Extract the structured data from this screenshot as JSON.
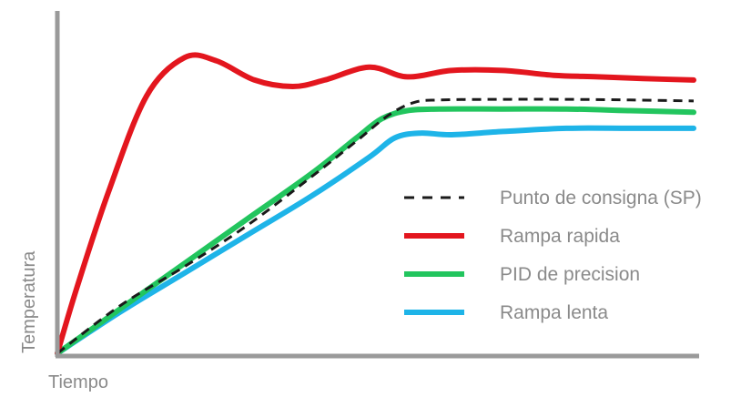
{
  "chart_data": {
    "type": "line",
    "title": "",
    "xlabel": "Tiempo",
    "ylabel": "Temperatura",
    "xlim": [
      0,
      100
    ],
    "ylim": [
      0,
      100
    ],
    "grid": false,
    "legend_position": "right",
    "series": [
      {
        "name": "Punto de consigna (SP)",
        "color": "#1a1a1a",
        "style": "dashed",
        "points": [
          [
            0,
            0
          ],
          [
            10,
            15
          ],
          [
            20,
            27
          ],
          [
            30,
            40
          ],
          [
            40,
            55
          ],
          [
            47,
            66
          ],
          [
            52,
            74
          ],
          [
            56,
            78
          ],
          [
            60,
            78.8
          ],
          [
            70,
            79
          ],
          [
            80,
            79
          ],
          [
            90,
            78.8
          ],
          [
            100,
            78.5
          ]
        ]
      },
      {
        "name": "Rampa rapida",
        "color": "#e3161e",
        "style": "solid",
        "points": [
          [
            0,
            0
          ],
          [
            3,
            20
          ],
          [
            8,
            50
          ],
          [
            14,
            80
          ],
          [
            20,
            92
          ],
          [
            25,
            91
          ],
          [
            31,
            85
          ],
          [
            37,
            83
          ],
          [
            42,
            85
          ],
          [
            49,
            89
          ],
          [
            55,
            86
          ],
          [
            62,
            88
          ],
          [
            70,
            88
          ],
          [
            78,
            86.5
          ],
          [
            85,
            86
          ],
          [
            92,
            85.5
          ],
          [
            100,
            85
          ]
        ]
      },
      {
        "name": "PID de precision",
        "color": "#22c55e",
        "style": "solid",
        "points": [
          [
            0,
            0
          ],
          [
            10,
            14
          ],
          [
            20,
            28
          ],
          [
            30,
            42
          ],
          [
            40,
            56
          ],
          [
            47,
            67
          ],
          [
            51,
            73
          ],
          [
            55,
            75.5
          ],
          [
            60,
            76
          ],
          [
            70,
            76
          ],
          [
            80,
            76
          ],
          [
            90,
            75.5
          ],
          [
            100,
            75
          ]
        ]
      },
      {
        "name": "Rampa lenta",
        "color": "#1eb4e8",
        "style": "solid",
        "points": [
          [
            0,
            0
          ],
          [
            10,
            13
          ],
          [
            20,
            25
          ],
          [
            30,
            37
          ],
          [
            40,
            49
          ],
          [
            49,
            61
          ],
          [
            53,
            67
          ],
          [
            57,
            68.5
          ],
          [
            62,
            68
          ],
          [
            70,
            69
          ],
          [
            80,
            70
          ],
          [
            90,
            70
          ],
          [
            100,
            70
          ]
        ]
      }
    ]
  }
}
